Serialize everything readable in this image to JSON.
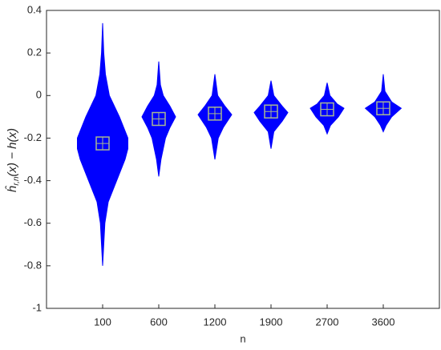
{
  "chart_data": {
    "type": "violin",
    "x_label": "n",
    "y_label": {
      "base": "ĥ",
      "sub": "r,n",
      "rest": "(x) − h(x)"
    },
    "categories": [
      "100",
      "600",
      "1200",
      "1900",
      "2700",
      "3600"
    ],
    "ylim": [
      -1,
      0.4
    ],
    "yticks": [
      -1,
      -0.8,
      -0.6,
      -0.4,
      -0.2,
      0,
      0.2,
      0.4
    ],
    "color": "#0000ff",
    "marker_color": "#a8b890",
    "violins": [
      {
        "y": [
          0.34,
          0.2,
          0.1,
          0.0,
          -0.1,
          -0.2,
          -0.25,
          -0.3,
          -0.4,
          -0.5,
          -0.6,
          -0.7,
          -0.8
        ],
        "widths": [
          0,
          0.02,
          0.05,
          0.12,
          0.3,
          0.45,
          0.45,
          0.4,
          0.25,
          0.1,
          0.04,
          0.02,
          0
        ],
        "median": -0.225
      },
      {
        "y": [
          0.16,
          0.05,
          0.0,
          -0.05,
          -0.1,
          -0.15,
          -0.2,
          -0.3,
          -0.38
        ],
        "widths": [
          0,
          0.03,
          0.08,
          0.2,
          0.3,
          0.2,
          0.12,
          0.04,
          0
        ],
        "median": -0.11
      },
      {
        "y": [
          0.1,
          0.0,
          -0.05,
          -0.09,
          -0.15,
          -0.2,
          -0.3
        ],
        "widths": [
          0,
          0.05,
          0.18,
          0.3,
          0.15,
          0.06,
          0
        ],
        "median": -0.085
      },
      {
        "y": [
          0.07,
          0.0,
          -0.05,
          -0.08,
          -0.12,
          -0.17,
          -0.25
        ],
        "widths": [
          0,
          0.05,
          0.2,
          0.3,
          0.2,
          0.05,
          0
        ],
        "median": -0.075
      },
      {
        "y": [
          0.06,
          0.0,
          -0.04,
          -0.06,
          -0.1,
          -0.14,
          -0.18
        ],
        "widths": [
          0,
          0.05,
          0.18,
          0.3,
          0.2,
          0.06,
          0
        ],
        "median": -0.065
      },
      {
        "y": [
          0.1,
          0.02,
          -0.03,
          -0.06,
          -0.1,
          -0.14,
          -0.17
        ],
        "widths": [
          0,
          0.03,
          0.15,
          0.32,
          0.15,
          0.05,
          0
        ],
        "median": -0.06
      }
    ]
  }
}
